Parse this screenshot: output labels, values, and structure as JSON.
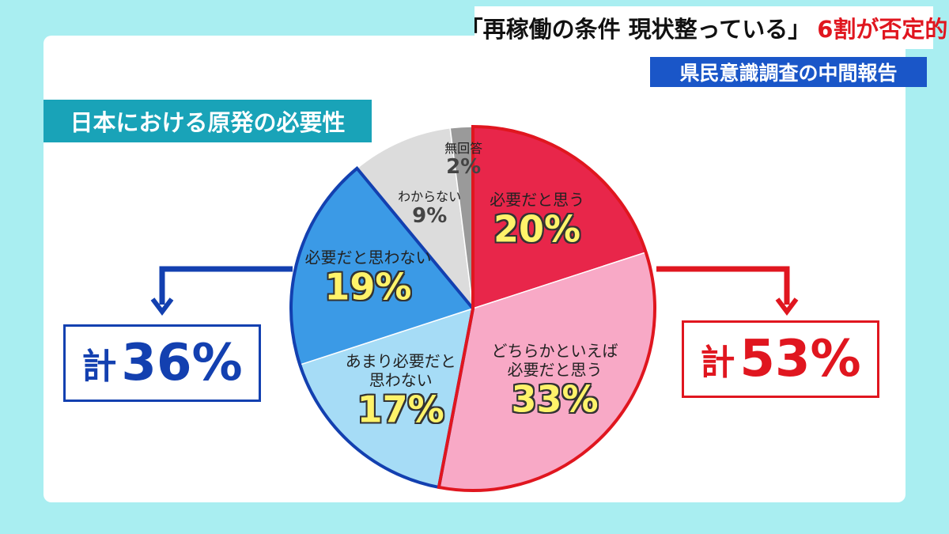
{
  "headline": {
    "main": "「再稼働の条件 現状整っている」",
    "emphasis": "6割が否定的",
    "sub": "県民意識調査の中間報告"
  },
  "chart_data": {
    "type": "pie",
    "title": "日本における原発の必要性",
    "categories": [
      "必要だと思う",
      "どちらかといえば\n必要だと思う",
      "あまり必要だと\n思わない",
      "必要だと思わない",
      "わからない",
      "無回答"
    ],
    "values": [
      20,
      33,
      17,
      19,
      9,
      2
    ],
    "value_labels": [
      "20%",
      "33%",
      "17%",
      "19%",
      "9%",
      "2%"
    ],
    "colors": [
      "#e8264a",
      "#f8a9c6",
      "#a6dcf6",
      "#3b9ae6",
      "#dcdcdc",
      "#9a9a9a"
    ],
    "totals": [
      {
        "prefix": "計",
        "value": 36,
        "value_label": "36%",
        "color": "#1340b0"
      },
      {
        "prefix": "計",
        "value": 53,
        "value_label": "53%",
        "color": "#e0161f"
      }
    ]
  }
}
